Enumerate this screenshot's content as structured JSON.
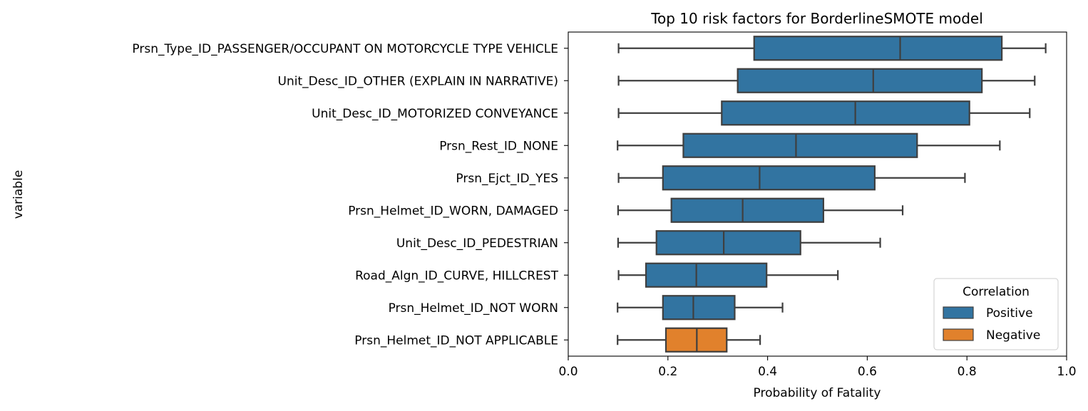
{
  "chart_data": {
    "type": "boxplot",
    "orientation": "horizontal",
    "title": "Top 10 risk factors for BorderlineSMOTE model",
    "xlabel": "Probability of Fatality",
    "ylabel": "variable",
    "xlim": [
      0.0,
      1.0
    ],
    "xticks": [
      0.0,
      0.2,
      0.4,
      0.6,
      0.8,
      1.0
    ],
    "xtick_labels": [
      "0.0",
      "0.2",
      "0.4",
      "0.6",
      "0.8",
      "1.0"
    ],
    "grid": false,
    "legend": {
      "title": "Correlation",
      "placement": "lower right",
      "entries": [
        {
          "label": "Positive",
          "color": "#3274a1"
        },
        {
          "label": "Negative",
          "color": "#e1812c"
        }
      ]
    },
    "categories": [
      "Prsn_Type_ID_PASSENGER/OCCUPANT ON MOTORCYCLE TYPE VEHICLE",
      "Unit_Desc_ID_OTHER (EXPLAIN IN NARRATIVE)",
      "Unit_Desc_ID_MOTORIZED CONVEYANCE",
      "Prsn_Rest_ID_NONE",
      "Prsn_Ejct_ID_YES",
      "Prsn_Helmet_ID_WORN, DAMAGED",
      "Unit_Desc_ID_PEDESTRIAN",
      "Road_Algn_ID_CURVE, HILLCREST",
      "Prsn_Helmet_ID_NOT WORN",
      "Prsn_Helmet_ID_NOT APPLICABLE"
    ],
    "boxes": [
      {
        "whisker_low": 0.101,
        "q1": 0.373,
        "median": 0.666,
        "q3": 0.87,
        "whisker_high": 0.958,
        "correlation": "Positive"
      },
      {
        "whisker_low": 0.101,
        "q1": 0.34,
        "median": 0.612,
        "q3": 0.83,
        "whisker_high": 0.936,
        "correlation": "Positive"
      },
      {
        "whisker_low": 0.101,
        "q1": 0.308,
        "median": 0.576,
        "q3": 0.805,
        "whisker_high": 0.926,
        "correlation": "Positive"
      },
      {
        "whisker_low": 0.099,
        "q1": 0.231,
        "median": 0.457,
        "q3": 0.7,
        "whisker_high": 0.866,
        "correlation": "Positive"
      },
      {
        "whisker_low": 0.101,
        "q1": 0.19,
        "median": 0.384,
        "q3": 0.615,
        "whisker_high": 0.796,
        "correlation": "Positive"
      },
      {
        "whisker_low": 0.1,
        "q1": 0.207,
        "median": 0.35,
        "q3": 0.512,
        "whisker_high": 0.671,
        "correlation": "Positive"
      },
      {
        "whisker_low": 0.1,
        "q1": 0.177,
        "median": 0.312,
        "q3": 0.466,
        "whisker_high": 0.626,
        "correlation": "Positive"
      },
      {
        "whisker_low": 0.101,
        "q1": 0.156,
        "median": 0.257,
        "q3": 0.398,
        "whisker_high": 0.541,
        "correlation": "Positive"
      },
      {
        "whisker_low": 0.099,
        "q1": 0.19,
        "median": 0.251,
        "q3": 0.334,
        "whisker_high": 0.43,
        "correlation": "Positive"
      },
      {
        "whisker_low": 0.099,
        "q1": 0.196,
        "median": 0.258,
        "q3": 0.318,
        "whisker_high": 0.385,
        "correlation": "Negative"
      }
    ]
  }
}
